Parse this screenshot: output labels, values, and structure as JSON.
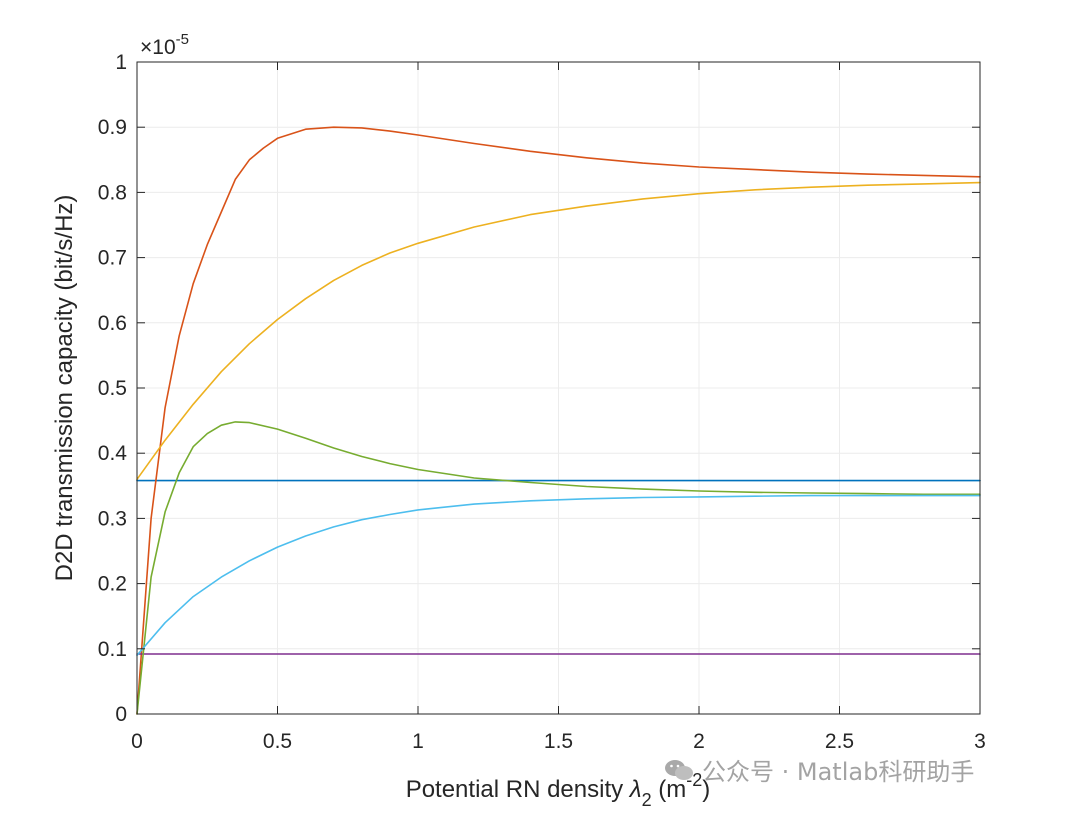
{
  "chart_data": {
    "type": "line",
    "xlabel": "Potential RN density λ2 (m-2)",
    "xlabel_parts": {
      "main": "Potential RN density ",
      "lambda": "λ",
      "sub": "2",
      "unit_open": " (m",
      "sup": "-2",
      "unit_close": ")"
    },
    "ylabel": "D2D transmission capacity (bit/s/Hz)",
    "y_multiplier": {
      "base": "×10",
      "exp": "-5"
    },
    "xlim": [
      0,
      3
    ],
    "ylim": [
      0,
      1
    ],
    "x_ticks": [
      "0",
      "0.5",
      "1",
      "1.5",
      "2",
      "2.5",
      "3"
    ],
    "y_ticks": [
      "0",
      "0.1",
      "0.2",
      "0.3",
      "0.4",
      "0.5",
      "0.6",
      "0.7",
      "0.8",
      "0.9",
      "1"
    ],
    "grid": true,
    "series": [
      {
        "color": "#0072BD",
        "x": [
          0,
          3
        ],
        "y": [
          0.358,
          0.358
        ]
      },
      {
        "color": "#D95319",
        "x": [
          0,
          0.05,
          0.1,
          0.15,
          0.2,
          0.25,
          0.3,
          0.35,
          0.4,
          0.45,
          0.5,
          0.6,
          0.7,
          0.8,
          0.9,
          1.0,
          1.2,
          1.4,
          1.6,
          1.8,
          2.0,
          2.2,
          2.4,
          2.6,
          2.8,
          3.0
        ],
        "y": [
          0.0,
          0.3,
          0.47,
          0.58,
          0.66,
          0.72,
          0.77,
          0.82,
          0.85,
          0.868,
          0.883,
          0.897,
          0.9,
          0.899,
          0.894,
          0.888,
          0.875,
          0.863,
          0.853,
          0.845,
          0.839,
          0.835,
          0.831,
          0.828,
          0.826,
          0.824
        ]
      },
      {
        "color": "#EDB120",
        "x": [
          0,
          0.1,
          0.2,
          0.3,
          0.4,
          0.5,
          0.6,
          0.7,
          0.8,
          0.9,
          1.0,
          1.2,
          1.4,
          1.6,
          1.8,
          2.0,
          2.2,
          2.4,
          2.6,
          2.8,
          3.0
        ],
        "y": [
          0.36,
          0.42,
          0.475,
          0.525,
          0.568,
          0.605,
          0.637,
          0.665,
          0.688,
          0.707,
          0.722,
          0.747,
          0.766,
          0.779,
          0.79,
          0.798,
          0.804,
          0.808,
          0.811,
          0.813,
          0.815
        ]
      },
      {
        "color": "#7E2F8E",
        "x": [
          0,
          3
        ],
        "y": [
          0.092,
          0.092
        ]
      },
      {
        "color": "#77AC30",
        "x": [
          0,
          0.05,
          0.1,
          0.15,
          0.2,
          0.25,
          0.3,
          0.35,
          0.4,
          0.5,
          0.6,
          0.7,
          0.8,
          0.9,
          1.0,
          1.2,
          1.4,
          1.6,
          1.8,
          2.0,
          2.2,
          2.4,
          2.6,
          2.8,
          3.0
        ],
        "y": [
          0.0,
          0.21,
          0.31,
          0.37,
          0.41,
          0.43,
          0.443,
          0.448,
          0.447,
          0.437,
          0.423,
          0.408,
          0.395,
          0.384,
          0.375,
          0.362,
          0.355,
          0.349,
          0.345,
          0.342,
          0.34,
          0.339,
          0.338,
          0.337,
          0.337
        ]
      },
      {
        "color": "#4DBEEE",
        "x": [
          0,
          0.1,
          0.2,
          0.3,
          0.4,
          0.5,
          0.6,
          0.7,
          0.8,
          0.9,
          1.0,
          1.2,
          1.4,
          1.6,
          1.8,
          2.0,
          2.2,
          2.4,
          2.6,
          2.8,
          3.0
        ],
        "y": [
          0.09,
          0.14,
          0.18,
          0.21,
          0.235,
          0.256,
          0.273,
          0.287,
          0.298,
          0.306,
          0.313,
          0.322,
          0.327,
          0.33,
          0.332,
          0.333,
          0.334,
          0.335,
          0.335,
          0.335,
          0.335
        ]
      }
    ]
  },
  "watermark": {
    "text": "公众号 · Matlab科研助手",
    "icon": "wechat-icon"
  }
}
